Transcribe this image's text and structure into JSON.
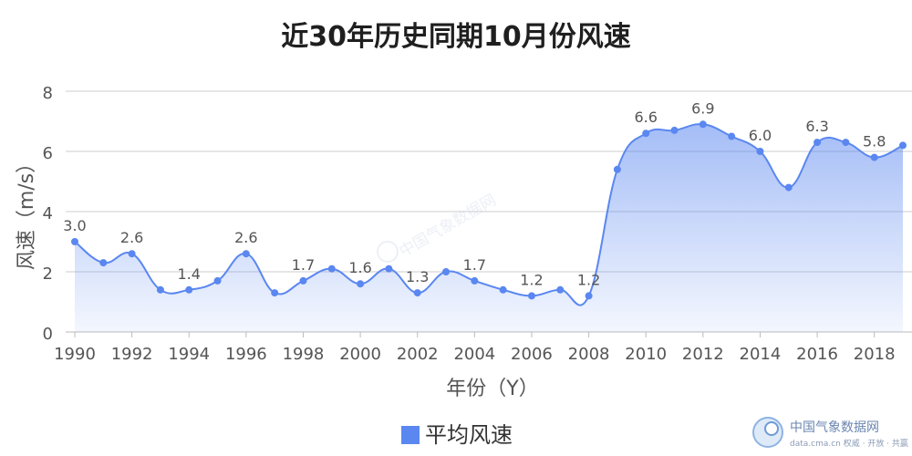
{
  "chart_data": {
    "type": "area",
    "title": "近30年历史同期10月份风速",
    "xlabel": "年份（Y）",
    "ylabel": "风速（m/s）",
    "ylim": [
      0,
      8
    ],
    "yticks": [
      0,
      2,
      4,
      6,
      8
    ],
    "xlim": [
      1990,
      2019
    ],
    "xticks": [
      "1990",
      "1992",
      "1994",
      "1996",
      "1998",
      "2000",
      "2002",
      "2004",
      "2006",
      "2008",
      "2010",
      "2012",
      "2014",
      "2016",
      "2018"
    ],
    "grid": true,
    "legend_position": "bottom-center",
    "series": [
      {
        "name": "平均风速",
        "color": "#5a87f0",
        "x": [
          1990,
          1991,
          1992,
          1993,
          1994,
          1995,
          1996,
          1997,
          1998,
          1999,
          2000,
          2001,
          2002,
          2003,
          2004,
          2005,
          2006,
          2007,
          2008,
          2009,
          2010,
          2011,
          2012,
          2013,
          2014,
          2015,
          2016,
          2017,
          2018,
          2019
        ],
        "values": [
          3.0,
          2.3,
          2.6,
          1.4,
          1.4,
          1.7,
          2.6,
          1.3,
          1.7,
          2.1,
          1.6,
          2.1,
          1.3,
          2.0,
          1.7,
          1.4,
          1.2,
          1.4,
          1.2,
          5.4,
          6.6,
          6.7,
          6.9,
          6.5,
          6.0,
          4.8,
          6.3,
          6.3,
          5.8,
          6.2
        ]
      }
    ],
    "data_labels": [
      {
        "x": 1990,
        "text": "3.0"
      },
      {
        "x": 1992,
        "text": "2.6"
      },
      {
        "x": 1994,
        "text": "1.4"
      },
      {
        "x": 1996,
        "text": "2.6"
      },
      {
        "x": 1998,
        "text": "1.7"
      },
      {
        "x": 2000,
        "text": "1.6"
      },
      {
        "x": 2002,
        "text": "1.3"
      },
      {
        "x": 2004,
        "text": "1.7"
      },
      {
        "x": 2006,
        "text": "1.2"
      },
      {
        "x": 2008,
        "text": "1.2"
      },
      {
        "x": 2010,
        "text": "6.6"
      },
      {
        "x": 2012,
        "text": "6.9"
      },
      {
        "x": 2014,
        "text": "6.0"
      },
      {
        "x": 2016,
        "text": "6.3"
      },
      {
        "x": 2018,
        "text": "5.8"
      }
    ]
  },
  "watermark": {
    "center_text": "中国气象数据网",
    "brand_name": "中国气象数据网",
    "brand_sub": "data.cma.cn 权威 · 开放 · 共赢"
  }
}
